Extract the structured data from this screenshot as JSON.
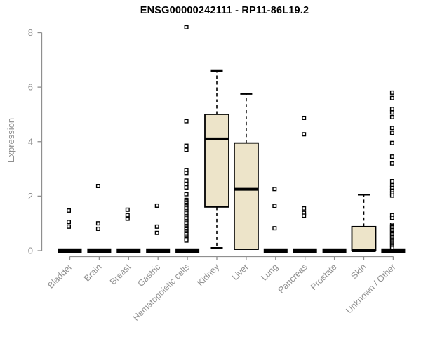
{
  "chart_data": {
    "type": "boxplot",
    "title": "ENSG00000242111 - RP11-86L19.2",
    "xlabel": "",
    "ylabel": "Expression",
    "ylim": [
      0,
      8
    ],
    "yticks": [
      0,
      2,
      4,
      6,
      8
    ],
    "grid": false,
    "categories": [
      "Bladder",
      "Brain",
      "Breast",
      "Gastric",
      "Hematopoietic cells",
      "Kidney",
      "Liver",
      "Lung",
      "Pancreas",
      "Prostate",
      "Skin",
      "Unknown / Other"
    ],
    "boxes": [
      {
        "low": 0,
        "q1": 0,
        "median": 0,
        "q3": 0,
        "high": 0
      },
      {
        "low": 0,
        "q1": 0,
        "median": 0,
        "q3": 0,
        "high": 0
      },
      {
        "low": 0,
        "q1": 0,
        "median": 0,
        "q3": 0,
        "high": 0
      },
      {
        "low": 0,
        "q1": 0,
        "median": 0,
        "q3": 0,
        "high": 0
      },
      {
        "low": 0,
        "q1": 0,
        "median": 0,
        "q3": 0,
        "high": 0
      },
      {
        "low": 0.1,
        "q1": 1.6,
        "median": 4.1,
        "q3": 5.0,
        "high": 6.6
      },
      {
        "low": null,
        "q1": 0.05,
        "median": 2.25,
        "q3": 3.95,
        "high": 5.75
      },
      {
        "low": 0,
        "q1": 0,
        "median": 0,
        "q3": 0,
        "high": 0
      },
      {
        "low": 0,
        "q1": 0,
        "median": 0,
        "q3": 0,
        "high": 0
      },
      {
        "low": 0,
        "q1": 0,
        "median": 0,
        "q3": 0,
        "high": 0
      },
      {
        "low": null,
        "q1": 0,
        "median": 0,
        "q3": 0.88,
        "high": 2.05
      },
      {
        "low": 0,
        "q1": 0,
        "median": 0,
        "q3": 0,
        "high": 0
      }
    ],
    "outliers": [
      [
        1.47,
        1.05,
        0.88
      ],
      [
        2.37,
        1.0,
        0.8
      ],
      [
        1.5,
        1.3,
        1.17
      ],
      [
        1.65,
        0.88,
        0.65
      ],
      [
        8.2,
        4.75,
        3.85,
        3.7,
        2.95,
        2.85,
        2.57,
        2.45,
        2.32,
        2.07,
        1.86,
        1.8,
        1.74,
        1.68,
        1.62,
        1.56,
        1.5,
        1.44,
        1.38,
        1.32,
        1.26,
        1.2,
        1.14,
        1.08,
        1.02,
        0.96,
        0.9,
        0.84,
        0.78,
        0.72,
        0.66,
        0.6,
        0.54,
        0.48,
        0.42,
        0.37
      ],
      [],
      [],
      [
        2.26,
        1.64,
        0.82
      ],
      [
        4.87,
        4.27,
        1.55,
        1.38,
        1.28
      ],
      [],
      [],
      [
        5.8,
        5.6,
        5.2,
        5.07,
        4.9,
        4.5,
        4.32,
        3.95,
        3.45,
        3.2,
        2.55,
        2.4,
        2.3,
        2.2,
        2.1,
        2.02,
        1.3,
        1.2,
        0.95,
        0.9,
        0.85,
        0.8,
        0.75,
        0.7,
        0.65,
        0.6,
        0.55,
        0.5,
        0.45,
        0.4,
        0.35,
        0.3,
        0.25,
        0.2,
        0.15,
        0.1
      ]
    ],
    "colors": {
      "box_fill": "#EDE4C9",
      "box_stroke": "#000000",
      "median": "#000000",
      "whisker": "#000000",
      "outlier_stroke": "#000000",
      "axis": "#8F8F8F",
      "tick_label": "#8F8F8F",
      "title": "#000000",
      "background": "#FFFFFF"
    }
  }
}
